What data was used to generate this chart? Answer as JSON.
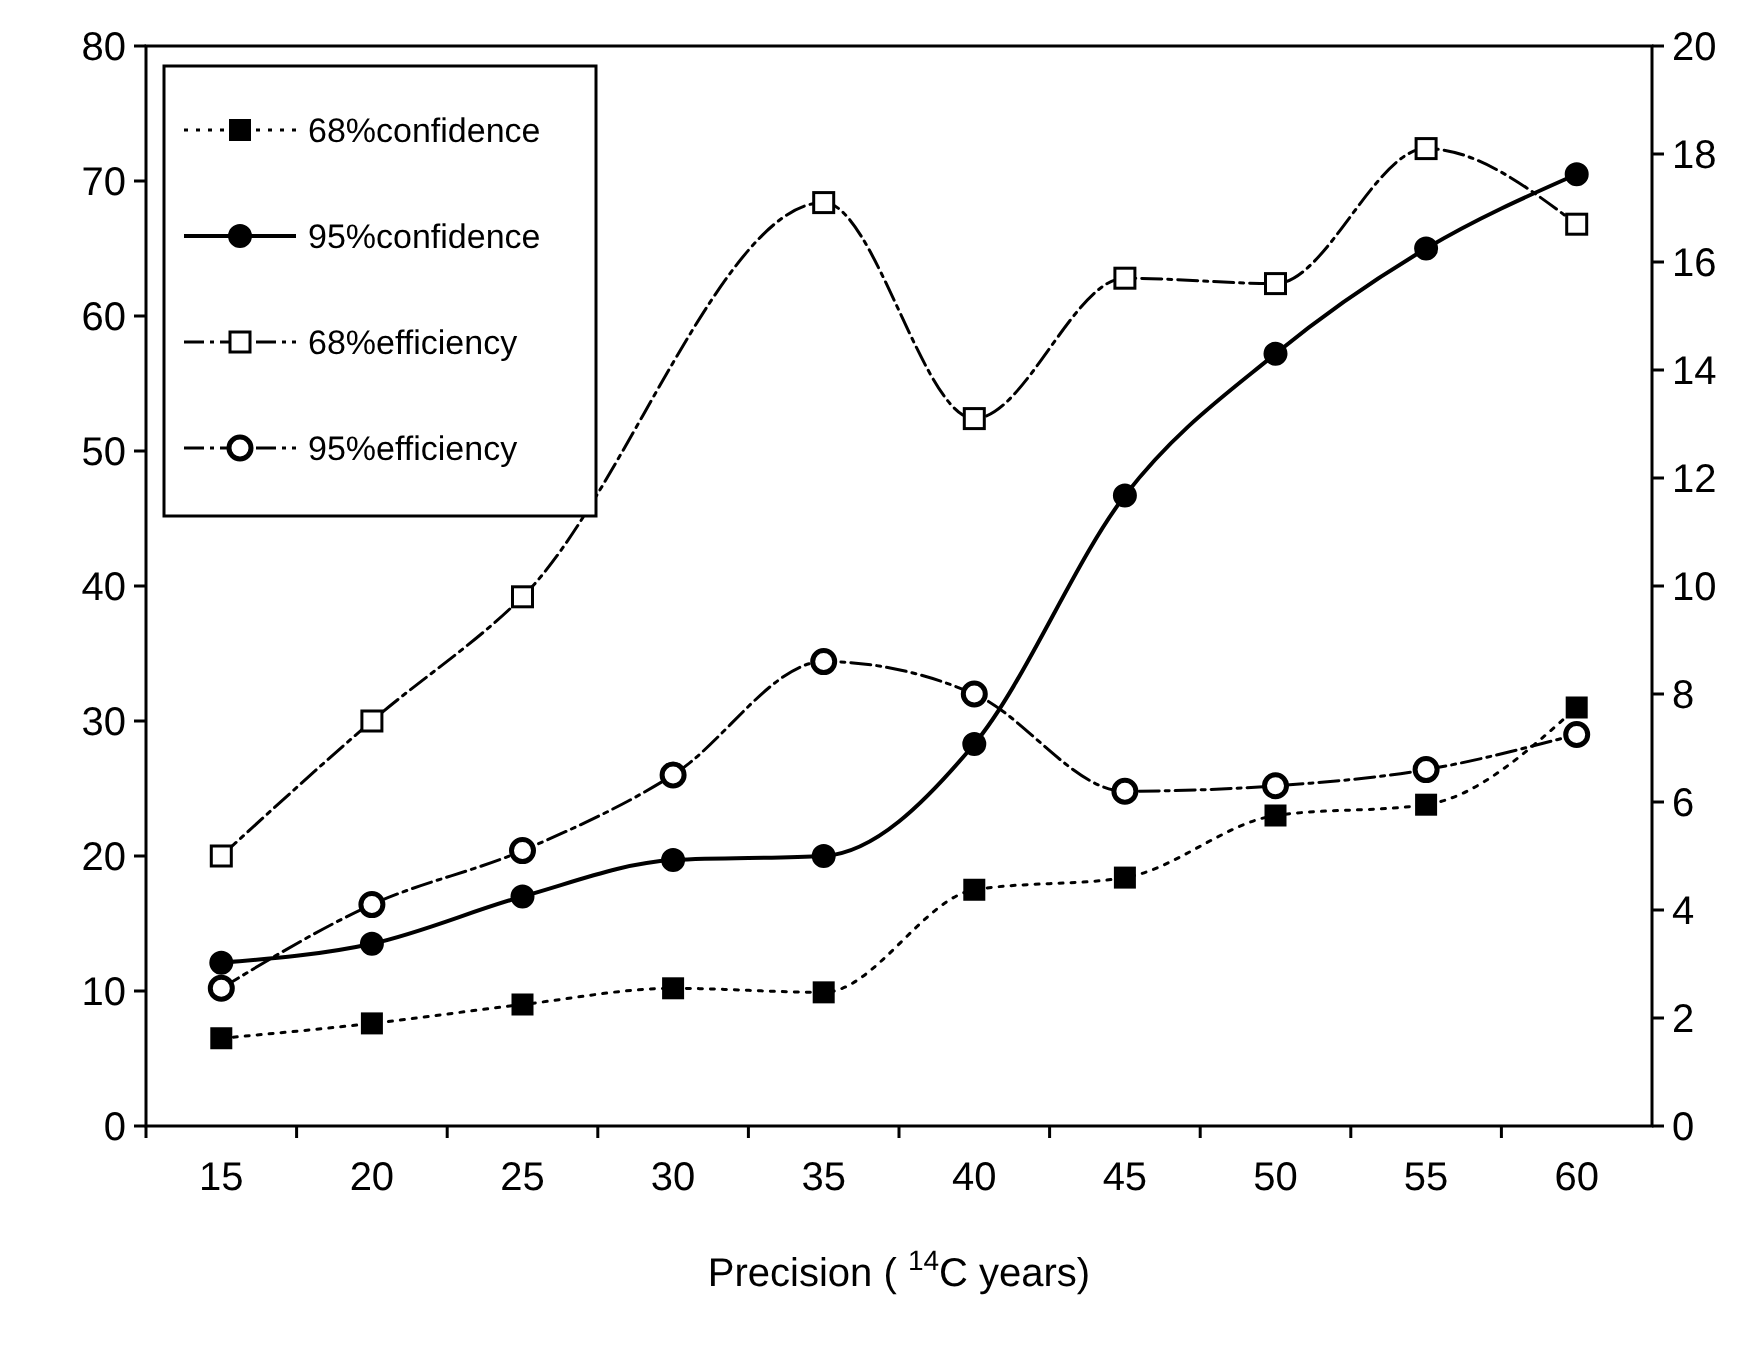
{
  "chart_data": {
    "type": "line",
    "xlabel": "Precision ( $^{14}$C years)",
    "categories": [
      "15",
      "20",
      "25",
      "30",
      "35",
      "40",
      "45",
      "50",
      "55",
      "60"
    ],
    "ylim": [
      0,
      80
    ],
    "yticks": [
      0,
      10,
      20,
      30,
      40,
      50,
      60,
      70,
      80
    ],
    "y2lim": [
      0,
      20
    ],
    "y2ticks": [
      0,
      2,
      4,
      6,
      8,
      10,
      12,
      14,
      16,
      18,
      20
    ],
    "grid": false,
    "legend": "top left",
    "series": [
      {
        "name": "68%confidence",
        "color": "#000000",
        "marker": "square",
        "line_style": "dotted",
        "values": [
          6.5,
          7.6,
          9.0,
          10.2,
          9.9,
          17.5,
          18.4,
          23.0,
          23.8,
          31.0
        ]
      },
      {
        "name": "95%confidence",
        "color": "#000000",
        "marker": "circle",
        "line_style": "solid",
        "values": [
          12.1,
          13.5,
          17.0,
          19.7,
          20.0,
          28.3,
          46.7,
          57.2,
          65.0,
          70.5
        ]
      },
      {
        "name": "68%efficiency",
        "color": "#000000",
        "marker": "square",
        "line_style": "dashed",
        "axis": "y2",
        "values": [
          5.0,
          7.5,
          9.8,
          null,
          17.1,
          13.1,
          15.7,
          15.6,
          18.1,
          16.7
        ]
      },
      {
        "name": "95%efficiency",
        "color": "#000000",
        "marker": "circle",
        "line_style": "dashed",
        "axis": "y2",
        "values": [
          2.55,
          4.1,
          5.1,
          6.5,
          8.6,
          8.0,
          6.2,
          6.3,
          6.6,
          7.25
        ]
      }
    ]
  }
}
